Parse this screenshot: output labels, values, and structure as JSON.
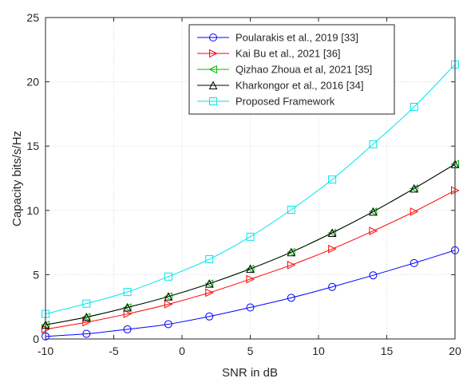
{
  "chart_data": {
    "type": "line",
    "title": "",
    "xlabel": "SNR in dB",
    "ylabel": "Capacity bits/s/Hz",
    "xlim": [
      -10,
      20
    ],
    "ylim": [
      0,
      25
    ],
    "xticks": [
      -10,
      -5,
      0,
      5,
      10,
      15,
      20
    ],
    "yticks": [
      0,
      5,
      10,
      15,
      20,
      25
    ],
    "grid": true,
    "legend_position": "top-right",
    "x": [
      -10,
      -7,
      -4,
      -1,
      2,
      5,
      8,
      11,
      14,
      17,
      20
    ],
    "series": [
      {
        "name": "Poularakis et al., 2019 [33]",
        "color": "#0000ff",
        "marker": "circle",
        "values": [
          0.2,
          0.4,
          0.75,
          1.15,
          1.75,
          2.45,
          3.2,
          4.05,
          4.95,
          5.9,
          6.9
        ]
      },
      {
        "name": "Kai Bu et al., 2021 [36]",
        "color": "#ff0000",
        "marker": "triangle-right",
        "values": [
          0.75,
          1.3,
          1.95,
          2.7,
          3.6,
          4.65,
          5.75,
          7.0,
          8.4,
          9.9,
          11.55
        ]
      },
      {
        "name": "Qizhao Zhoua et al, 2021 [35]",
        "color": "#00bb00",
        "marker": "triangle-left",
        "values": [
          1.1,
          1.7,
          2.45,
          3.3,
          4.3,
          5.45,
          6.75,
          8.25,
          9.9,
          11.7,
          13.6
        ]
      },
      {
        "name": "Kharkongor et al., 2016 [34]",
        "color": "#000000",
        "marker": "triangle-up",
        "values": [
          1.1,
          1.7,
          2.45,
          3.3,
          4.3,
          5.45,
          6.75,
          8.25,
          9.9,
          11.7,
          13.6
        ]
      },
      {
        "name": "Proposed Framework",
        "color": "#00e5ee",
        "marker": "square",
        "values": [
          1.95,
          2.75,
          3.65,
          4.85,
          6.2,
          7.95,
          10.05,
          12.4,
          15.15,
          18.05,
          21.35
        ]
      }
    ]
  }
}
